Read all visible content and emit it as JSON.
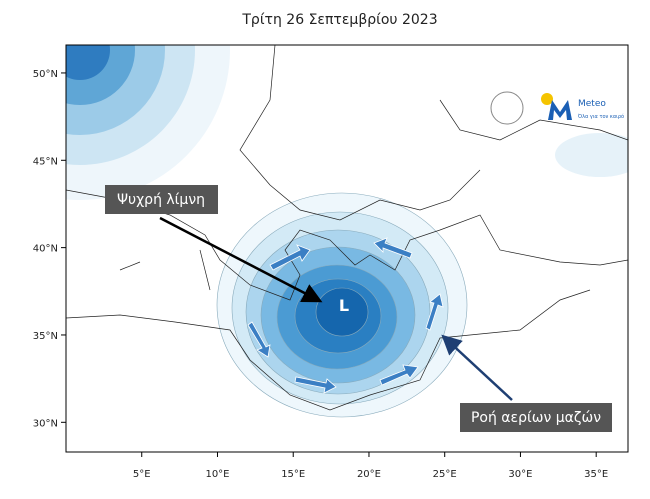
{
  "title": "Τρίτη 26 Σεπτεμβρίου 2023",
  "map": {
    "xlim": [
      0,
      37.1
    ],
    "ylim": [
      28.3,
      51.6
    ],
    "xticks": [
      {
        "value": 5,
        "label": "5°E"
      },
      {
        "value": 10,
        "label": "10°E"
      },
      {
        "value": 15,
        "label": "15°E"
      },
      {
        "value": 20,
        "label": "20°E"
      },
      {
        "value": 25,
        "label": "25°E"
      },
      {
        "value": 30,
        "label": "30°E"
      },
      {
        "value": 35,
        "label": "35°E"
      }
    ],
    "yticks": [
      {
        "value": 30,
        "label": "30°N"
      },
      {
        "value": 35,
        "label": "35°N"
      },
      {
        "value": 40,
        "label": "40°N"
      },
      {
        "value": 45,
        "label": "45°N"
      },
      {
        "value": 50,
        "label": "50°N"
      }
    ]
  },
  "annotations": {
    "low": "L",
    "cold_pool": "Ψυχρή λίμνη",
    "flow": "Ροή αερίων μαζών"
  },
  "logo": {
    "name": "Meteo",
    "tagline": "Όλα για τον καιρό"
  }
}
